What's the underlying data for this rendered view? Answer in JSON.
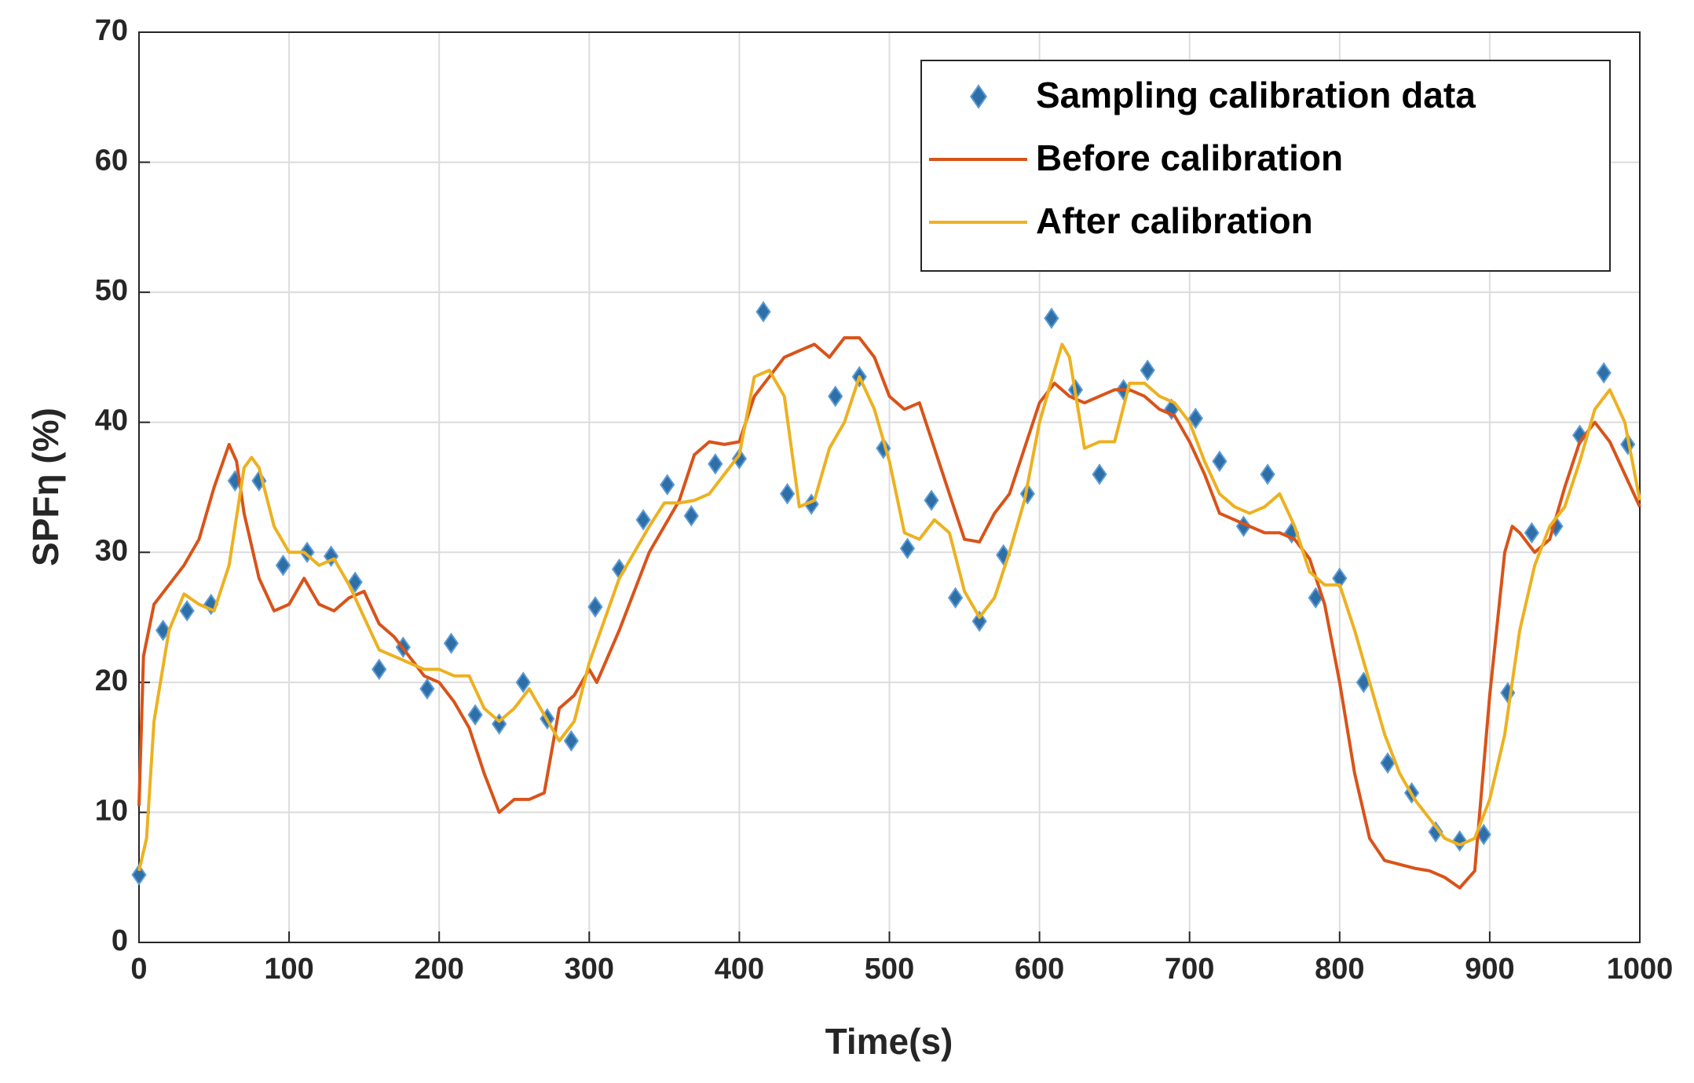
{
  "chart_data": {
    "type": "line",
    "x_label": "Time(s)",
    "y_label": "SPFη (%)",
    "xlim": [
      0,
      1000
    ],
    "ylim": [
      0,
      70
    ],
    "xticks": [
      0,
      100,
      200,
      300,
      400,
      500,
      600,
      700,
      800,
      900,
      1000
    ],
    "yticks": [
      0,
      10,
      20,
      30,
      40,
      50,
      60,
      70
    ],
    "grid": true,
    "legend": "upper right",
    "series": [
      {
        "name": "Sampling calibration data",
        "color": "#2e6fa8",
        "mode": "markers",
        "x": [
          0,
          16,
          32,
          48,
          64,
          80,
          96,
          112,
          128,
          144,
          160,
          176,
          192,
          208,
          224,
          240,
          256,
          272,
          288,
          304,
          320,
          336,
          352,
          368,
          384,
          400,
          416,
          432,
          448,
          464,
          480,
          496,
          512,
          528,
          544,
          560,
          576,
          592,
          608,
          624,
          640,
          656,
          672,
          688,
          704,
          720,
          736,
          752,
          768,
          784,
          800,
          816,
          832,
          848,
          864,
          880,
          896,
          912,
          928,
          944,
          960,
          976,
          992
        ],
        "values": [
          5.2,
          24,
          25.5,
          26,
          35.5,
          35.5,
          29,
          30,
          29.7,
          27.7,
          21,
          22.7,
          19.5,
          23,
          17.5,
          16.8,
          20,
          17.2,
          15.5,
          25.8,
          28.7,
          32.5,
          35.2,
          32.8,
          36.8,
          37.2,
          48.5,
          34.5,
          33.7,
          42,
          43.5,
          38,
          30.3,
          34,
          26.5,
          24.7,
          29.8,
          34.5,
          48,
          42.5,
          36,
          42.5,
          44,
          41,
          40.3,
          37,
          32,
          36,
          31.5,
          26.5,
          28,
          20,
          13.8,
          11.5,
          8.5,
          7.8,
          8.3,
          19.2,
          31.5,
          32,
          39,
          43.8,
          38.3
        ]
      },
      {
        "name": "Before calibration",
        "color": "#d95319",
        "mode": "line",
        "x": [
          0,
          3,
          10,
          20,
          30,
          40,
          50,
          60,
          65,
          70,
          80,
          90,
          100,
          110,
          120,
          130,
          140,
          150,
          160,
          170,
          180,
          190,
          200,
          210,
          220,
          230,
          240,
          250,
          260,
          270,
          280,
          290,
          300,
          305,
          320,
          340,
          360,
          370,
          380,
          390,
          400,
          410,
          420,
          430,
          440,
          450,
          460,
          470,
          480,
          490,
          500,
          510,
          520,
          530,
          540,
          550,
          560,
          570,
          580,
          590,
          600,
          610,
          620,
          630,
          640,
          650,
          660,
          670,
          680,
          690,
          700,
          710,
          720,
          730,
          740,
          750,
          760,
          770,
          780,
          790,
          800,
          810,
          820,
          830,
          840,
          850,
          860,
          870,
          880,
          890,
          900,
          910,
          915,
          920,
          930,
          940,
          950,
          960,
          970,
          980,
          990,
          1000
        ],
        "values": [
          10.5,
          22,
          26,
          27.5,
          29,
          31,
          35,
          38.3,
          37,
          33,
          28,
          25.5,
          26,
          28,
          26,
          25.5,
          26.5,
          27,
          24.5,
          23.5,
          22,
          20.5,
          20,
          18.5,
          16.5,
          13,
          10,
          11,
          11,
          11.5,
          18,
          19,
          21,
          20,
          24,
          30,
          34,
          37.5,
          38.5,
          38.3,
          38.5,
          42,
          43.5,
          45,
          45.5,
          46,
          45,
          46.5,
          46.5,
          45,
          42,
          41,
          41.5,
          38,
          34.5,
          31,
          30.8,
          33,
          34.5,
          38,
          41.5,
          43,
          42,
          41.5,
          42,
          42.5,
          42.5,
          42,
          41,
          40.5,
          38.5,
          36,
          33,
          32.5,
          32,
          31.5,
          31.5,
          31,
          29.5,
          26,
          20,
          13,
          8,
          6.3,
          6,
          5.7,
          5.5,
          5,
          4.2,
          5.5,
          19,
          30,
          32,
          31.5,
          30,
          31,
          35,
          38.5,
          40,
          38.5,
          36,
          33.5
        ]
      },
      {
        "name": "After calibration",
        "color": "#edb120",
        "mode": "line",
        "x": [
          0,
          5,
          10,
          20,
          30,
          40,
          50,
          60,
          70,
          75,
          80,
          90,
          100,
          110,
          120,
          130,
          140,
          150,
          160,
          170,
          180,
          190,
          200,
          210,
          220,
          230,
          240,
          250,
          260,
          270,
          280,
          290,
          300,
          320,
          340,
          350,
          360,
          370,
          380,
          390,
          400,
          410,
          420,
          430,
          440,
          450,
          460,
          470,
          480,
          490,
          500,
          510,
          520,
          530,
          540,
          550,
          560,
          570,
          580,
          590,
          600,
          610,
          615,
          620,
          630,
          640,
          650,
          660,
          670,
          680,
          690,
          700,
          710,
          720,
          730,
          740,
          750,
          760,
          770,
          780,
          790,
          800,
          810,
          820,
          830,
          840,
          850,
          860,
          870,
          880,
          890,
          900,
          910,
          920,
          930,
          940,
          950,
          960,
          970,
          980,
          990,
          1000
        ],
        "values": [
          5.5,
          8,
          17,
          24,
          26.8,
          26,
          25.5,
          29,
          36.5,
          37.3,
          36.5,
          32,
          30,
          30,
          29,
          29.5,
          27.5,
          25,
          22.5,
          22,
          21.5,
          21,
          21,
          20.5,
          20.5,
          18,
          17,
          18,
          19.5,
          17.5,
          15.5,
          17,
          21.5,
          28,
          32,
          33.8,
          33.8,
          34,
          34.5,
          36,
          37.5,
          43.5,
          44,
          42,
          33.5,
          34,
          38,
          40,
          43.5,
          41,
          37,
          31.5,
          31,
          32.5,
          31.5,
          27,
          25,
          26.5,
          30,
          34,
          40,
          44,
          46,
          45,
          38,
          38.5,
          38.5,
          43,
          43,
          42,
          41.5,
          40,
          37,
          34.5,
          33.5,
          33,
          33.5,
          34.5,
          32,
          28.5,
          27.5,
          27.5,
          24,
          20,
          16,
          13,
          11,
          9.5,
          8,
          7.5,
          8,
          11,
          16,
          24,
          29,
          32,
          33.5,
          37,
          41,
          42.5,
          40,
          34
        ]
      }
    ]
  }
}
